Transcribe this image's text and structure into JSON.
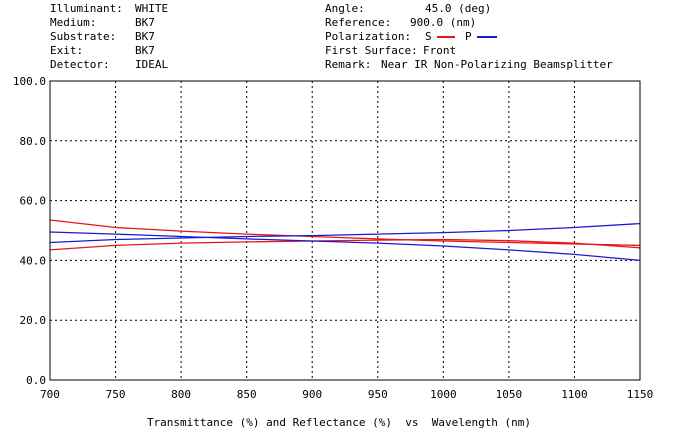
{
  "header": {
    "left": [
      {
        "label": "Illuminant:",
        "value": "WHITE"
      },
      {
        "label": "Medium:",
        "value": "BK7"
      },
      {
        "label": "Substrate:",
        "value": "BK7"
      },
      {
        "label": "Exit:",
        "value": "BK7"
      },
      {
        "label": "Detector:",
        "value": "IDEAL"
      }
    ],
    "right": [
      {
        "label": "Angle:",
        "value": "45.0 (deg)"
      },
      {
        "label": "Reference:",
        "value": "900.0 (nm)"
      },
      {
        "label": "Polarization:",
        "s_label": "S",
        "p_label": "P"
      },
      {
        "label": "First Surface:",
        "value": "Front"
      },
      {
        "label": "Remark:",
        "value": "Near IR Non-Polarizing Beamsplitter"
      }
    ]
  },
  "colors": {
    "s": "#e8141c",
    "p": "#1a1ad0"
  },
  "chart_data": {
    "type": "line",
    "xlabel": "Transmittance (%) and Reflectance (%)  vs  Wavelength (nm)",
    "xlim": [
      700,
      1150
    ],
    "ylim": [
      0,
      100
    ],
    "x_ticks": [
      700,
      750,
      800,
      850,
      900,
      950,
      1000,
      1050,
      1100,
      1150
    ],
    "x_tick_labels": [
      "700",
      "750",
      "800",
      "850",
      "900",
      "950",
      "1000",
      "1050",
      "1100",
      "1150"
    ],
    "y_ticks": [
      0,
      20,
      40,
      60,
      80,
      100
    ],
    "y_tick_labels": [
      "0.0",
      "20.0",
      "40.0",
      "60.0",
      "80.0",
      "100.0"
    ],
    "grid": true,
    "series": [
      {
        "key": "s_reflectance",
        "color": "#e8141c",
        "width": 1.3,
        "x": [
          700,
          750,
          800,
          850,
          900,
          950,
          1000,
          1050,
          1100,
          1150
        ],
        "y": [
          53.5,
          51.0,
          49.8,
          48.8,
          48.0,
          47.2,
          46.5,
          46.0,
          45.5,
          45.0
        ]
      },
      {
        "key": "s_transmittance",
        "color": "#e8141c",
        "width": 1.3,
        "x": [
          700,
          750,
          800,
          850,
          900,
          950,
          1000,
          1050,
          1100,
          1150
        ],
        "y": [
          43.5,
          45.0,
          45.8,
          46.2,
          46.5,
          46.8,
          47.0,
          46.6,
          45.8,
          44.2
        ]
      },
      {
        "key": "p_reflectance",
        "color": "#1a1ad0",
        "width": 1.3,
        "x": [
          700,
          750,
          800,
          850,
          900,
          950,
          1000,
          1050,
          1100,
          1150
        ],
        "y": [
          49.5,
          48.8,
          48.0,
          47.2,
          46.5,
          45.8,
          44.8,
          43.5,
          42.0,
          40.0
        ]
      },
      {
        "key": "p_transmittance",
        "color": "#1a1ad0",
        "width": 1.3,
        "x": [
          700,
          750,
          800,
          850,
          900,
          950,
          1000,
          1050,
          1100,
          1150
        ],
        "y": [
          46.0,
          47.0,
          47.5,
          48.0,
          48.3,
          48.8,
          49.3,
          50.0,
          51.0,
          52.3
        ]
      }
    ]
  }
}
